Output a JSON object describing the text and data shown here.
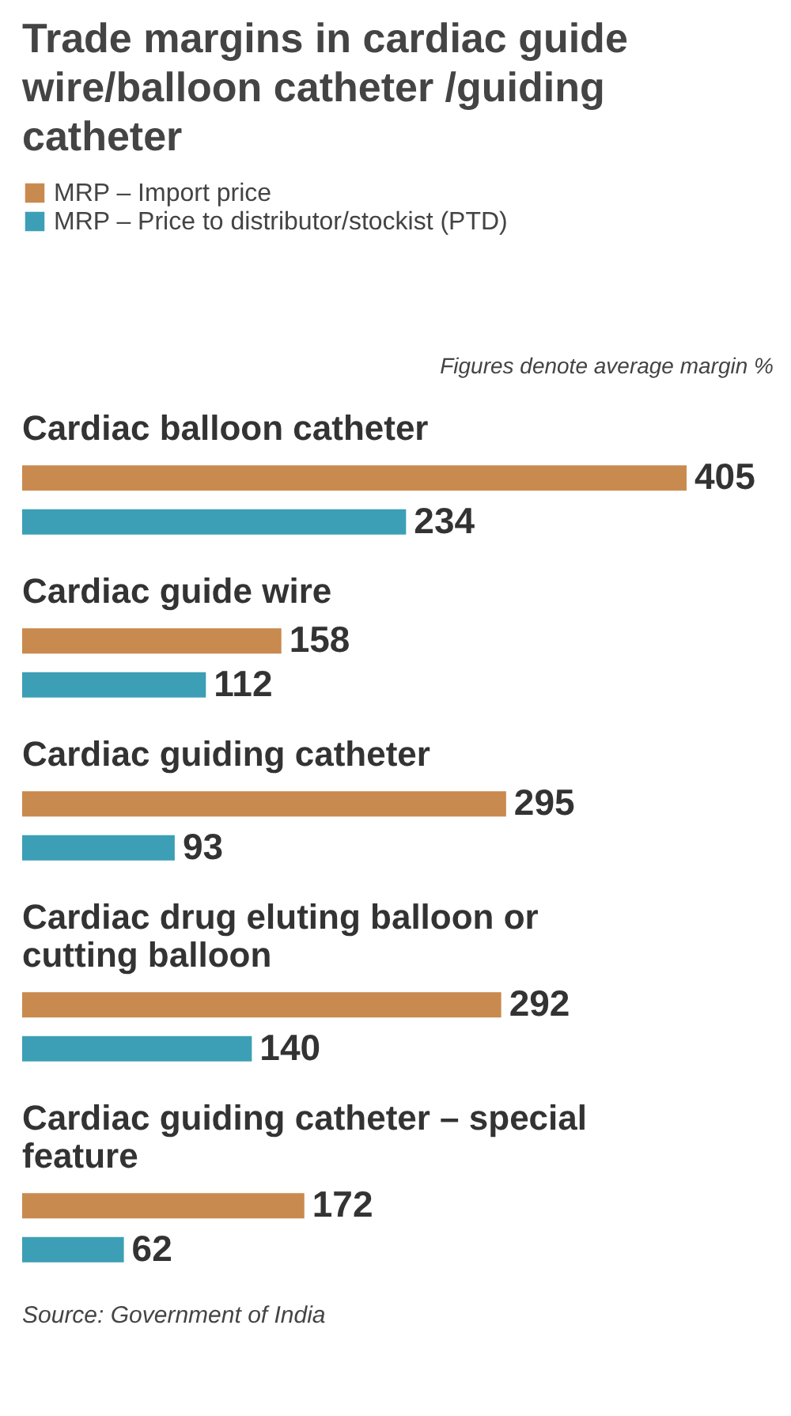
{
  "chart_data": {
    "type": "bar",
    "orientation": "horizontal",
    "title": "Trade margins in cardiac guide wire/balloon catheter /guiding catheter",
    "categories": [
      "Cardiac balloon catheter",
      "Cardiac guide wire",
      "Cardiac guiding catheter",
      "Cardiac drug eluting balloon or cutting balloon",
      "Cardiac guiding catheter – special feature"
    ],
    "series": [
      {
        "name": "MRP – Import price",
        "color": "#c98a4f",
        "values": [
          405,
          158,
          295,
          292,
          172
        ]
      },
      {
        "name": "MRP – Price to distributor/stockist (PTD)",
        "color": "#3d9fb5",
        "values": [
          234,
          112,
          93,
          140,
          62
        ]
      }
    ],
    "data_labels": true,
    "legend": "top left",
    "annotations": [
      "Figures denote average margin %",
      "Source: Government of India"
    ]
  }
}
